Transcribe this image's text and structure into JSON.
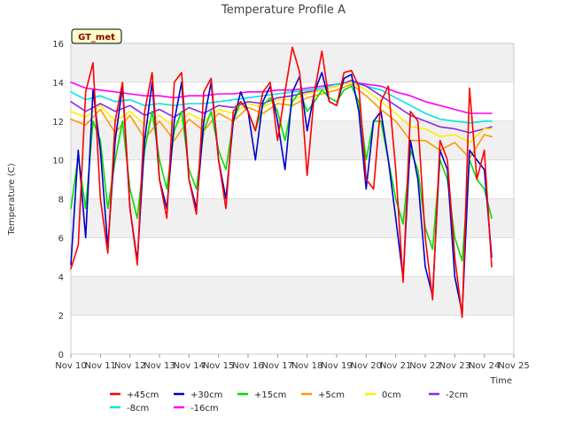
{
  "chart_data": {
    "type": "line",
    "title": "Temperature Profile A",
    "xlabel": "Time",
    "ylabel": "Temperature (C)",
    "badge": "GT_met",
    "xlim": [
      "Nov 10",
      "Nov 25"
    ],
    "ylim": [
      0,
      16
    ],
    "x_ticks": [
      "Nov 10",
      "Nov 11",
      "Nov 12",
      "Nov 13",
      "Nov 14",
      "Nov 15",
      "Nov 16",
      "Nov 17",
      "Nov 18",
      "Nov 19",
      "Nov 20",
      "Nov 21",
      "Nov 22",
      "Nov 23",
      "Nov 24",
      "Nov 25"
    ],
    "y_ticks": [
      0,
      2,
      4,
      6,
      8,
      10,
      12,
      14,
      16
    ],
    "grid": true,
    "legend_position": "bottom",
    "series": [
      {
        "name": "+45cm",
        "color": "#ff0000",
        "x": [
          "Nov 10 00:00",
          "Nov 10 06:00",
          "Nov 10 12:00",
          "Nov 10 18:00",
          "Nov 11 00:00",
          "Nov 11 06:00",
          "Nov 11 12:00",
          "Nov 11 18:00",
          "Nov 12 00:00",
          "Nov 12 06:00",
          "Nov 12 12:00",
          "Nov 12 18:00",
          "Nov 13 00:00",
          "Nov 13 06:00",
          "Nov 13 12:00",
          "Nov 13 18:00",
          "Nov 14 00:00",
          "Nov 14 06:00",
          "Nov 14 12:00",
          "Nov 14 18:00",
          "Nov 15 00:00",
          "Nov 15 06:00",
          "Nov 15 12:00",
          "Nov 15 18:00",
          "Nov 16 00:00",
          "Nov 16 06:00",
          "Nov 16 12:00",
          "Nov 16 18:00",
          "Nov 17 00:00",
          "Nov 17 06:00",
          "Nov 17 12:00",
          "Nov 17 18:00",
          "Nov 18 00:00",
          "Nov 18 06:00",
          "Nov 18 12:00",
          "Nov 18 18:00",
          "Nov 19 00:00",
          "Nov 19 06:00",
          "Nov 19 12:00",
          "Nov 19 18:00",
          "Nov 20 00:00",
          "Nov 20 06:00",
          "Nov 20 12:00",
          "Nov 20 18:00",
          "Nov 21 00:00",
          "Nov 21 06:00",
          "Nov 21 12:00",
          "Nov 21 18:00",
          "Nov 22 00:00",
          "Nov 22 06:00",
          "Nov 22 12:00",
          "Nov 22 18:00",
          "Nov 23 00:00",
          "Nov 23 06:00",
          "Nov 23 12:00",
          "Nov 23 18:00",
          "Nov 24 00:00",
          "Nov 24 06:00"
        ],
        "y": [
          4.4,
          5.6,
          13.5,
          15.0,
          8.0,
          5.2,
          12.0,
          14.0,
          7.5,
          4.6,
          12.5,
          14.5,
          9.0,
          7.0,
          14.0,
          14.5,
          9.0,
          7.2,
          13.5,
          14.2,
          10.0,
          7.5,
          12.5,
          13.0,
          12.5,
          11.5,
          13.5,
          14.0,
          11.0,
          13.5,
          15.8,
          14.5,
          9.2,
          13.5,
          15.6,
          13.0,
          12.8,
          14.5,
          14.6,
          13.8,
          9.0,
          8.5,
          13.0,
          13.8,
          9.5,
          3.7,
          12.5,
          12.0,
          6.0,
          2.8,
          11.0,
          10.0,
          5.0,
          1.9,
          13.7,
          9.0,
          10.5,
          4.5
        ]
      },
      {
        "name": "+30cm",
        "color": "#0000cc",
        "x": [
          "Nov 10 00:00",
          "Nov 10 06:00",
          "Nov 10 12:00",
          "Nov 10 18:00",
          "Nov 11 00:00",
          "Nov 11 06:00",
          "Nov 11 12:00",
          "Nov 11 18:00",
          "Nov 12 00:00",
          "Nov 12 06:00",
          "Nov 12 12:00",
          "Nov 12 18:00",
          "Nov 13 00:00",
          "Nov 13 06:00",
          "Nov 13 12:00",
          "Nov 13 18:00",
          "Nov 14 00:00",
          "Nov 14 06:00",
          "Nov 14 12:00",
          "Nov 14 18:00",
          "Nov 15 00:00",
          "Nov 15 06:00",
          "Nov 15 12:00",
          "Nov 15 18:00",
          "Nov 16 00:00",
          "Nov 16 06:00",
          "Nov 16 12:00",
          "Nov 16 18:00",
          "Nov 17 00:00",
          "Nov 17 06:00",
          "Nov 17 12:00",
          "Nov 17 18:00",
          "Nov 18 00:00",
          "Nov 18 06:00",
          "Nov 18 12:00",
          "Nov 18 18:00",
          "Nov 19 00:00",
          "Nov 19 06:00",
          "Nov 19 12:00",
          "Nov 19 18:00",
          "Nov 20 00:00",
          "Nov 20 06:00",
          "Nov 20 12:00",
          "Nov 20 18:00",
          "Nov 21 00:00",
          "Nov 21 06:00",
          "Nov 21 12:00",
          "Nov 21 18:00",
          "Nov 22 00:00",
          "Nov 22 06:00",
          "Nov 22 12:00",
          "Nov 22 18:00",
          "Nov 23 00:00",
          "Nov 23 06:00",
          "Nov 23 12:00",
          "Nov 23 18:00",
          "Nov 24 00:00",
          "Nov 24 06:00"
        ],
        "y": [
          4.6,
          10.5,
          6.0,
          13.6,
          10.5,
          5.5,
          11.0,
          13.8,
          7.5,
          4.8,
          11.0,
          14.0,
          9.0,
          7.5,
          12.0,
          14.0,
          9.0,
          7.5,
          12.0,
          14.0,
          10.0,
          8.0,
          12.0,
          13.5,
          12.5,
          10.0,
          13.0,
          13.8,
          12.0,
          9.5,
          13.5,
          14.3,
          11.5,
          13.5,
          14.5,
          13.0,
          12.8,
          14.2,
          14.4,
          12.5,
          8.5,
          12.0,
          12.5,
          10.0,
          7.0,
          3.9,
          11.0,
          9.0,
          4.5,
          3.0,
          10.5,
          9.5,
          4.0,
          2.1,
          10.5,
          10.0,
          9.5,
          5.0
        ]
      },
      {
        "name": "+15cm",
        "color": "#00dd00",
        "x": [
          "Nov 10 00:00",
          "Nov 10 06:00",
          "Nov 10 12:00",
          "Nov 10 18:00",
          "Nov 11 00:00",
          "Nov 11 06:00",
          "Nov 11 12:00",
          "Nov 11 18:00",
          "Nov 12 00:00",
          "Nov 12 06:00",
          "Nov 12 12:00",
          "Nov 12 18:00",
          "Nov 13 00:00",
          "Nov 13 06:00",
          "Nov 13 12:00",
          "Nov 13 18:00",
          "Nov 14 00:00",
          "Nov 14 06:00",
          "Nov 14 12:00",
          "Nov 14 18:00",
          "Nov 15 00:00",
          "Nov 15 06:00",
          "Nov 15 12:00",
          "Nov 15 18:00",
          "Nov 16 00:00",
          "Nov 16 06:00",
          "Nov 16 12:00",
          "Nov 16 18:00",
          "Nov 17 00:00",
          "Nov 17 06:00",
          "Nov 17 12:00",
          "Nov 17 18:00",
          "Nov 18 00:00",
          "Nov 18 06:00",
          "Nov 18 12:00",
          "Nov 18 18:00",
          "Nov 19 00:00",
          "Nov 19 06:00",
          "Nov 19 12:00",
          "Nov 19 18:00",
          "Nov 20 00:00",
          "Nov 20 06:00",
          "Nov 20 12:00",
          "Nov 20 18:00",
          "Nov 21 00:00",
          "Nov 21 06:00",
          "Nov 21 12:00",
          "Nov 21 18:00",
          "Nov 22 00:00",
          "Nov 22 06:00",
          "Nov 22 12:00",
          "Nov 22 18:00",
          "Nov 23 00:00",
          "Nov 23 06:00",
          "Nov 23 12:00",
          "Nov 23 18:00",
          "Nov 24 00:00",
          "Nov 24 06:00"
        ],
        "y": [
          7.5,
          10.2,
          7.5,
          12.0,
          11.0,
          7.5,
          10.0,
          12.0,
          8.5,
          7.0,
          10.5,
          12.5,
          10.0,
          8.5,
          11.5,
          12.5,
          9.5,
          8.5,
          11.5,
          12.5,
          10.5,
          9.5,
          12.0,
          13.0,
          12.5,
          11.5,
          12.8,
          13.2,
          12.5,
          11.0,
          13.0,
          13.5,
          12.5,
          13.0,
          13.6,
          13.2,
          13.0,
          13.6,
          13.8,
          13.0,
          10.0,
          12.0,
          12.0,
          10.0,
          8.0,
          6.7,
          10.5,
          9.5,
          6.5,
          5.4,
          10.0,
          9.0,
          6.0,
          4.8,
          10.0,
          9.0,
          8.5,
          7.0
        ]
      },
      {
        "name": "+5cm",
        "color": "#ff9900",
        "x": [
          "Nov 10 00:00",
          "Nov 10 12:00",
          "Nov 11 00:00",
          "Nov 11 12:00",
          "Nov 12 00:00",
          "Nov 12 12:00",
          "Nov 13 00:00",
          "Nov 13 12:00",
          "Nov 14 00:00",
          "Nov 14 12:00",
          "Nov 15 00:00",
          "Nov 15 12:00",
          "Nov 16 00:00",
          "Nov 16 12:00",
          "Nov 17 00:00",
          "Nov 17 12:00",
          "Nov 18 00:00",
          "Nov 18 12:00",
          "Nov 19 00:00",
          "Nov 19 12:00",
          "Nov 20 00:00",
          "Nov 20 12:00",
          "Nov 21 00:00",
          "Nov 21 12:00",
          "Nov 22 00:00",
          "Nov 22 12:00",
          "Nov 23 00:00",
          "Nov 23 12:00",
          "Nov 24 00:00",
          "Nov 24 06:00"
        ],
        "y": [
          12.1,
          11.8,
          12.6,
          11.4,
          12.3,
          11.1,
          12.0,
          11.0,
          12.1,
          11.5,
          12.4,
          12.0,
          12.7,
          12.4,
          12.9,
          12.8,
          13.2,
          13.4,
          13.6,
          13.9,
          13.3,
          12.6,
          12.0,
          11.0,
          11.0,
          10.5,
          10.9,
          10.1,
          11.3,
          11.2
        ]
      },
      {
        "name": "0cm",
        "color": "#ffee00",
        "x": [
          "Nov 10 00:00",
          "Nov 10 12:00",
          "Nov 11 00:00",
          "Nov 11 12:00",
          "Nov 12 00:00",
          "Nov 12 12:00",
          "Nov 13 00:00",
          "Nov 13 12:00",
          "Nov 14 00:00",
          "Nov 14 12:00",
          "Nov 15 00:00",
          "Nov 15 12:00",
          "Nov 16 00:00",
          "Nov 16 12:00",
          "Nov 17 00:00",
          "Nov 17 12:00",
          "Nov 18 00:00",
          "Nov 18 12:00",
          "Nov 19 00:00",
          "Nov 19 12:00",
          "Nov 20 00:00",
          "Nov 20 12:00",
          "Nov 21 00:00",
          "Nov 21 12:00",
          "Nov 22 00:00",
          "Nov 22 12:00",
          "Nov 23 00:00",
          "Nov 23 12:00",
          "Nov 24 00:00",
          "Nov 24 06:00"
        ],
        "y": [
          12.5,
          12.2,
          12.8,
          12.0,
          12.5,
          11.8,
          12.3,
          11.7,
          12.4,
          12.0,
          12.6,
          12.4,
          12.9,
          12.7,
          13.1,
          13.1,
          13.4,
          13.6,
          13.8,
          14.0,
          13.6,
          13.0,
          12.4,
          11.7,
          11.6,
          11.2,
          11.3,
          10.9,
          11.6,
          11.6
        ]
      },
      {
        "name": "-2cm",
        "color": "#8a2be2",
        "x": [
          "Nov 10 00:00",
          "Nov 10 12:00",
          "Nov 11 00:00",
          "Nov 11 12:00",
          "Nov 12 00:00",
          "Nov 12 12:00",
          "Nov 13 00:00",
          "Nov 13 12:00",
          "Nov 14 00:00",
          "Nov 14 12:00",
          "Nov 15 00:00",
          "Nov 15 12:00",
          "Nov 16 00:00",
          "Nov 16 12:00",
          "Nov 17 00:00",
          "Nov 17 12:00",
          "Nov 18 00:00",
          "Nov 18 12:00",
          "Nov 19 00:00",
          "Nov 19 12:00",
          "Nov 20 00:00",
          "Nov 20 12:00",
          "Nov 21 00:00",
          "Nov 21 12:00",
          "Nov 22 00:00",
          "Nov 22 12:00",
          "Nov 23 00:00",
          "Nov 23 12:00",
          "Nov 24 00:00",
          "Nov 24 06:00"
        ],
        "y": [
          13.0,
          12.5,
          12.9,
          12.5,
          12.8,
          12.3,
          12.6,
          12.2,
          12.7,
          12.4,
          12.8,
          12.7,
          13.0,
          12.9,
          13.2,
          13.3,
          13.5,
          13.6,
          13.8,
          14.1,
          13.8,
          13.3,
          12.8,
          12.3,
          12.0,
          11.7,
          11.6,
          11.4,
          11.6,
          11.7
        ]
      },
      {
        "name": "-8cm",
        "color": "#00e5e5",
        "x": [
          "Nov 10 00:00",
          "Nov 10 12:00",
          "Nov 11 00:00",
          "Nov 11 12:00",
          "Nov 12 00:00",
          "Nov 12 12:00",
          "Nov 13 00:00",
          "Nov 13 12:00",
          "Nov 14 00:00",
          "Nov 14 12:00",
          "Nov 15 00:00",
          "Nov 15 12:00",
          "Nov 16 00:00",
          "Nov 16 12:00",
          "Nov 17 00:00",
          "Nov 17 12:00",
          "Nov 18 00:00",
          "Nov 18 12:00",
          "Nov 19 00:00",
          "Nov 19 12:00",
          "Nov 20 00:00",
          "Nov 20 12:00",
          "Nov 21 00:00",
          "Nov 21 12:00",
          "Nov 22 00:00",
          "Nov 22 12:00",
          "Nov 23 00:00",
          "Nov 23 12:00",
          "Nov 24 00:00",
          "Nov 24 06:00"
        ],
        "y": [
          13.5,
          13.1,
          13.3,
          13.0,
          13.1,
          12.8,
          12.9,
          12.8,
          12.9,
          12.9,
          13.0,
          13.1,
          13.2,
          13.3,
          13.4,
          13.5,
          13.6,
          13.7,
          13.9,
          14.0,
          13.8,
          13.6,
          13.2,
          12.8,
          12.4,
          12.1,
          12.0,
          11.9,
          12.0,
          12.0
        ]
      },
      {
        "name": "-16cm",
        "color": "#ff00ff",
        "x": [
          "Nov 10 00:00",
          "Nov 10 12:00",
          "Nov 11 00:00",
          "Nov 11 12:00",
          "Nov 12 00:00",
          "Nov 12 12:00",
          "Nov 13 00:00",
          "Nov 13 12:00",
          "Nov 14 00:00",
          "Nov 14 12:00",
          "Nov 15 00:00",
          "Nov 15 12:00",
          "Nov 16 00:00",
          "Nov 16 12:00",
          "Nov 17 00:00",
          "Nov 17 12:00",
          "Nov 18 00:00",
          "Nov 18 12:00",
          "Nov 19 00:00",
          "Nov 19 12:00",
          "Nov 20 00:00",
          "Nov 20 12:00",
          "Nov 21 00:00",
          "Nov 21 12:00",
          "Nov 22 00:00",
          "Nov 22 12:00",
          "Nov 23 00:00",
          "Nov 23 12:00",
          "Nov 24 00:00",
          "Nov 24 06:00"
        ],
        "y": [
          14.0,
          13.7,
          13.6,
          13.5,
          13.4,
          13.3,
          13.3,
          13.2,
          13.3,
          13.3,
          13.4,
          13.4,
          13.5,
          13.5,
          13.6,
          13.6,
          13.7,
          13.8,
          13.9,
          14.0,
          13.9,
          13.8,
          13.5,
          13.3,
          13.0,
          12.8,
          12.6,
          12.4,
          12.4,
          12.4
        ]
      }
    ]
  }
}
